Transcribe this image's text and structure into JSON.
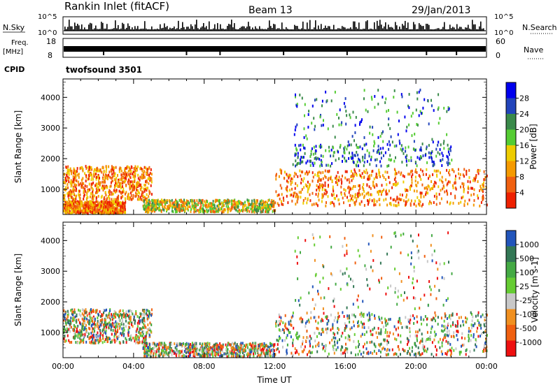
{
  "header": {
    "station": "Rankin Inlet (fitACF)",
    "beam": "Beam 13",
    "date": "29/Jan/2013"
  },
  "strips": {
    "nsky": {
      "label": "N.Sky",
      "ticks": [
        "10^5",
        "10^0"
      ]
    },
    "nsearch": {
      "label": "N.Search",
      "ticks": [
        "10^5",
        "10^0"
      ]
    },
    "freq": {
      "label_top": "Freq.",
      "label_unit": "[MHz]",
      "ticks": [
        "18",
        "8"
      ]
    },
    "nave": {
      "label": "Nave",
      "ticks": [
        "60",
        "0"
      ]
    },
    "cpid": {
      "label": "CPID",
      "value": "twofsound 3501"
    }
  },
  "chart_data": [
    {
      "type": "heatmap",
      "panel": "power",
      "xlabel": "",
      "ylabel": "Slant Range [km]",
      "xlim": [
        "00:00",
        "24:00"
      ],
      "ylim": [
        180,
        4600
      ],
      "yticks": [
        "1000",
        "2000",
        "3000",
        "4000"
      ],
      "colorbar_label": "Power [dB]",
      "colorbar_ticks": [
        "28",
        "24",
        "20",
        "16",
        "12",
        "8",
        "4"
      ],
      "colors": [
        "#0000ee",
        "#2244bb",
        "#3a8a4a",
        "#55cc33",
        "#eecc00",
        "#f59a00",
        "#f06010",
        "#ee2000"
      ],
      "scatter_regions": [
        {
          "x": [
            "00:00",
            "05:00"
          ],
          "y": [
            700,
            1800
          ],
          "level": "high"
        },
        {
          "x": [
            "00:00",
            "03:30"
          ],
          "y": [
            250,
            650
          ],
          "level": "high"
        },
        {
          "x": [
            "04:30",
            "12:00"
          ],
          "y": [
            300,
            700
          ],
          "level": "medium"
        },
        {
          "x": [
            "12:00",
            "24:00"
          ],
          "y": [
            500,
            1700
          ],
          "level": "high"
        },
        {
          "x": [
            "13:00",
            "22:00"
          ],
          "y": [
            1800,
            2500
          ],
          "level": "low"
        },
        {
          "x": [
            "13:00",
            "22:00"
          ],
          "y": [
            2500,
            4300
          ],
          "level": "sparse"
        }
      ]
    },
    {
      "type": "heatmap",
      "panel": "velocity",
      "xlabel": "Time UT",
      "ylabel": "Slant Range [km]",
      "xlim": [
        "00:00",
        "24:00"
      ],
      "ylim": [
        180,
        4600
      ],
      "xticks": [
        "00:00",
        "04:00",
        "08:00",
        "12:00",
        "16:00",
        "20:00",
        "00:00"
      ],
      "yticks": [
        "1000",
        "2000",
        "3000",
        "4000"
      ],
      "colorbar_label": "Velocity [m s-1]",
      "colorbar_ticks": [
        "1000",
        "500",
        "100",
        "25",
        "-25",
        "-100",
        "-500",
        "-1000"
      ],
      "colors": [
        "#2255bb",
        "#337755",
        "#44aa44",
        "#66cc33",
        "#c8c8c8",
        "#f09020",
        "#f06010",
        "#ee1010"
      ],
      "scatter_regions": [
        {
          "x": [
            "00:00",
            "05:00"
          ],
          "y": [
            700,
            1800
          ],
          "level": "mixed"
        },
        {
          "x": [
            "04:30",
            "12:00"
          ],
          "y": [
            250,
            700
          ],
          "level": "mixed"
        },
        {
          "x": [
            "12:00",
            "24:00"
          ],
          "y": [
            300,
            1700
          ],
          "level": "mixed"
        },
        {
          "x": [
            "13:00",
            "22:00"
          ],
          "y": [
            1800,
            4300
          ],
          "level": "sparse"
        }
      ]
    }
  ]
}
